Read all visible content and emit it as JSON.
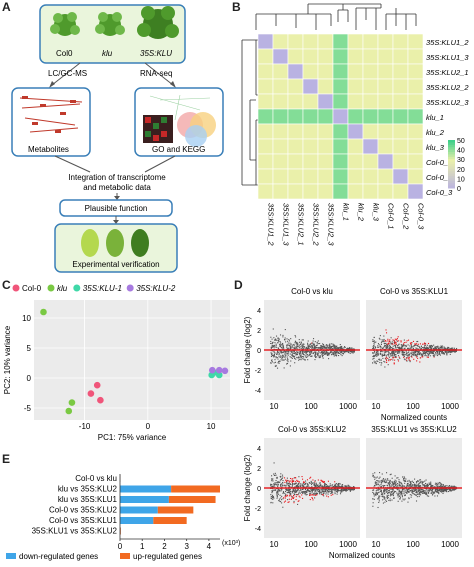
{
  "panel_a": {
    "letter": "A",
    "genotypes": [
      "Col0",
      "klu",
      "35S:KLU"
    ],
    "left_method": "LC/GC-MS",
    "right_method": "RNA-seq",
    "left_box_label": "Metabolites",
    "right_box_label": "GO and KEGG",
    "integration": "Integration of transcriptome\nand metabolic data",
    "function_box": "Plausible function",
    "verification_box": "Experimental verification",
    "colors": {
      "box_border": "#3a7fb8",
      "box_fill": "#eaf5dc",
      "plant": "#4f9a2c"
    }
  },
  "panel_b": {
    "letter": "B",
    "samples": [
      "35S:KLU1_2",
      "35S:KLU1_3",
      "35S:KLU2_1",
      "35S:KLU2_2",
      "35S:KLU2_3",
      "klu_1",
      "klu_2",
      "klu_3",
      "Col-0_1",
      "Col-0_2",
      "Col-0_3"
    ],
    "legend_ticks": [
      "50",
      "40",
      "30",
      "20",
      "10",
      "0"
    ],
    "colors": {
      "high": "#3fd08a",
      "mid": "#e6eda1",
      "low": "#b9b2e2"
    },
    "chart_data": {
      "type": "heatmap",
      "rows": [
        "35S:KLU1_2",
        "35S:KLU1_3",
        "35S:KLU2_1",
        "35S:KLU2_2",
        "35S:KLU2_3",
        "klu_1",
        "klu_2",
        "klu_3",
        "Col-0_1",
        "Col-0_2",
        "Col-0_3"
      ],
      "columns": [
        "35S:KLU1_2",
        "35S:KLU1_3",
        "35S:KLU2_1",
        "35S:KLU2_2",
        "35S:KLU2_3",
        "klu_1",
        "klu_2",
        "klu_3",
        "Col-0_1",
        "Col-0_2",
        "Col-0_3"
      ],
      "values": [
        [
          0,
          30,
          30,
          30,
          30,
          42,
          30,
          30,
          30,
          30,
          30
        ],
        [
          30,
          0,
          30,
          30,
          30,
          42,
          30,
          30,
          30,
          30,
          30
        ],
        [
          30,
          30,
          0,
          30,
          30,
          42,
          30,
          30,
          30,
          30,
          30
        ],
        [
          30,
          30,
          30,
          0,
          30,
          42,
          30,
          30,
          30,
          30,
          30
        ],
        [
          30,
          30,
          30,
          30,
          0,
          42,
          30,
          30,
          30,
          30,
          30
        ],
        [
          42,
          42,
          42,
          42,
          42,
          0,
          42,
          42,
          42,
          42,
          42
        ],
        [
          30,
          30,
          30,
          30,
          30,
          42,
          0,
          30,
          30,
          30,
          30
        ],
        [
          30,
          30,
          30,
          30,
          30,
          42,
          30,
          0,
          30,
          30,
          30
        ],
        [
          30,
          30,
          30,
          30,
          30,
          42,
          30,
          30,
          0,
          30,
          30
        ],
        [
          30,
          30,
          30,
          30,
          30,
          42,
          30,
          30,
          30,
          0,
          30
        ],
        [
          30,
          30,
          30,
          30,
          30,
          42,
          30,
          30,
          30,
          30,
          0
        ]
      ],
      "range": [
        0,
        50
      ]
    }
  },
  "panel_c": {
    "letter": "C",
    "xlabel": "PC1: 75% variance",
    "ylabel": "PC2: 10% variance",
    "legend": [
      {
        "label": "Col-0",
        "color": "#f0557a"
      },
      {
        "label": "klu",
        "color": "#7ac943"
      },
      {
        "label": "35S:KLU-1",
        "color": "#3fd8a8"
      },
      {
        "label": "35S:KLU-2",
        "color": "#a77ae0"
      }
    ],
    "chart_data": {
      "type": "scatter",
      "xlim": [
        -18,
        13
      ],
      "ylim": [
        -7,
        13
      ],
      "xticks": [
        -10,
        0,
        10
      ],
      "yticks": [
        -5,
        0,
        5,
        10
      ],
      "series": [
        {
          "name": "Col-0",
          "points": [
            [
              -8,
              -1.2
            ],
            [
              -7.5,
              -3.7
            ],
            [
              -9,
              -2.6
            ]
          ]
        },
        {
          "name": "klu",
          "points": [
            [
              -16.5,
              11
            ],
            [
              -12.5,
              -5.5
            ],
            [
              -12,
              -4.1
            ]
          ]
        },
        {
          "name": "35S:KLU-1",
          "points": [
            [
              10.1,
              0.5
            ],
            [
              11.3,
              0.5
            ],
            [
              10.5,
              0.9
            ]
          ]
        },
        {
          "name": "35S:KLU-2",
          "points": [
            [
              10.2,
              1.3
            ],
            [
              11.3,
              1.3
            ],
            [
              12.2,
              1.2
            ]
          ]
        }
      ]
    }
  },
  "panel_d": {
    "letter": "D",
    "ylabel": "Fold change (log2)",
    "xlabel": "Normalized counts",
    "xticks": [
      "10",
      "100",
      "1000"
    ],
    "yticks": [
      "4",
      "2",
      "0",
      "-2",
      "-4"
    ],
    "chart_data": [
      {
        "type": "scatter",
        "title": "Col-0 vs klu",
        "red_density": 0.002
      },
      {
        "type": "scatter",
        "title": "Col-0 vs 35S:KLU1",
        "red_density": 0.35
      },
      {
        "type": "scatter",
        "title": "Col-0 vs 35S:KLU2",
        "red_density": 0.35
      },
      {
        "type": "scatter",
        "title": "35S:KLU1 vs 35S:KLU2",
        "red_density": 0.0
      }
    ],
    "colors": {
      "grey": "#555555",
      "red": "#e8161b"
    }
  },
  "panel_e": {
    "letter": "E",
    "unit_label": "(x10³)",
    "legend": [
      {
        "label": "down-regulated genes",
        "color": "#3fa5e8"
      },
      {
        "label": "up-regulated genes",
        "color": "#f26a21"
      }
    ],
    "chart_data": {
      "type": "bar",
      "orientation": "horizontal",
      "stacked": true,
      "categories": [
        "Col-0 vs klu",
        "klu vs 35S:KLU2",
        "klu vs 35S:KLU1",
        "Col-0 vs 35S:KLU2",
        "Col-0 vs 35S:KLU1",
        "35S:KLU1 vs 35S:KLU2"
      ],
      "series": [
        {
          "name": "down-regulated genes",
          "values": [
            0.01,
            2.3,
            2.2,
            1.7,
            1.5,
            0.02
          ]
        },
        {
          "name": "up-regulated genes",
          "values": [
            0.01,
            2.2,
            2.1,
            1.6,
            1.5,
            0.02
          ]
        }
      ],
      "xticks": [
        0,
        1,
        2,
        3,
        4
      ],
      "xlim": [
        0,
        4.5
      ]
    }
  }
}
